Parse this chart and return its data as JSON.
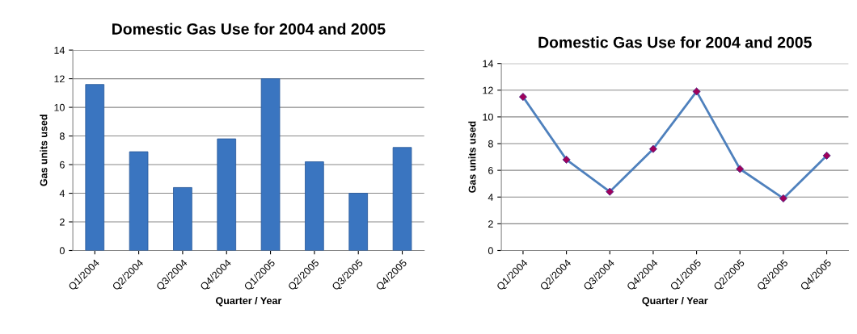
{
  "chart_data": [
    {
      "type": "bar",
      "title": "Domestic Gas Use for 2004 and 2005",
      "xlabel": "Quarter / Year",
      "ylabel": "Gas units used",
      "categories": [
        "Q1/2004",
        "Q2/2004",
        "Q3/2004",
        "Q4/2004",
        "Q1/2005",
        "Q2/2005",
        "Q3/2005",
        "Q4/2005"
      ],
      "values": [
        11.6,
        6.9,
        4.4,
        7.8,
        12.0,
        6.2,
        4.0,
        7.2
      ],
      "color": "#3a75c0",
      "ylim": [
        0,
        14
      ],
      "yticks": [
        0,
        2,
        4,
        6,
        8,
        10,
        12,
        14
      ],
      "grid": "y"
    },
    {
      "type": "line",
      "title": "Domestic Gas Use for 2004 and 2005",
      "xlabel": "Quarter / Year",
      "ylabel": "Gas units used",
      "categories": [
        "Q1/2004",
        "Q2/2004",
        "Q3/2004",
        "Q4/2004",
        "Q1/2005",
        "Q2/2005",
        "Q3/2005",
        "Q4/2005"
      ],
      "values": [
        11.5,
        6.8,
        4.4,
        7.6,
        11.9,
        6.1,
        3.9,
        7.1
      ],
      "color": "#4f81bd",
      "colors": [
        "#a0005a",
        "#a0005a",
        "#a0005a",
        "#a0005a",
        "#a0005a",
        "#a0005a",
        "#a0005a",
        "#a0005a"
      ],
      "marker": "diamond",
      "line_style": "solid",
      "ylim": [
        0,
        14
      ],
      "yticks": [
        0,
        2,
        4,
        6,
        8,
        10,
        12,
        14
      ],
      "grid": "y"
    }
  ]
}
